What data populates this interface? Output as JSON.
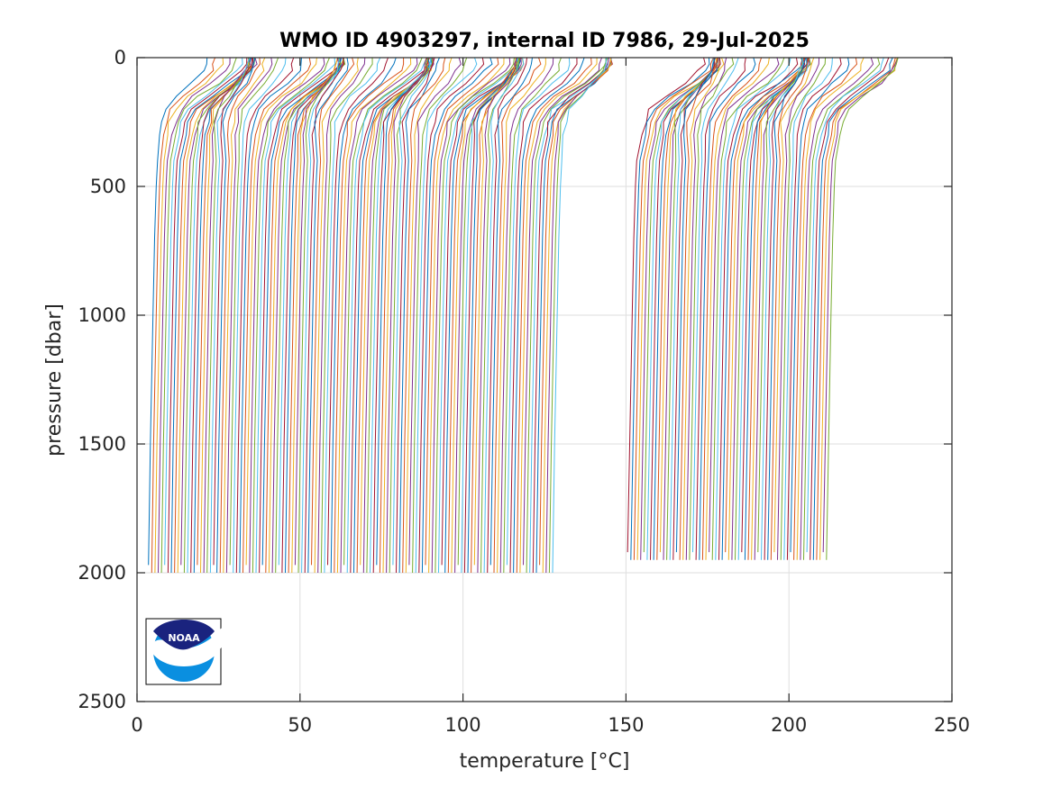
{
  "chart_data": {
    "type": "line",
    "title": "WMO ID 4903297, internal ID 7986, 29-Jul-2025",
    "xlabel": "temperature [°C]",
    "ylabel": "pressure [dbar]",
    "xlim": [
      0,
      250
    ],
    "ylim": [
      0,
      2500
    ],
    "y_reversed": true,
    "xticks": [
      "0",
      "50",
      "100",
      "150",
      "200",
      "250"
    ],
    "yticks": [
      "0",
      "500",
      "1000",
      "1500",
      "2000",
      "2500"
    ],
    "grid": true,
    "legend": "none",
    "note_offset": "each successive profile offset by about 1 °C along the temperature axis",
    "profile_shape": {
      "pressure": [
        0,
        25,
        50,
        100,
        150,
        200,
        250,
        300,
        400,
        500,
        700,
        1000,
        1500,
        2000
      ],
      "temperature": [
        19.0,
        18.9,
        18.0,
        14.5,
        10.0,
        6.5,
        5.0,
        4.4,
        3.8,
        3.4,
        2.9,
        2.4,
        1.6,
        1.0
      ]
    },
    "series_groups": [
      {
        "first_deep_offset_x": 3.5,
        "count": 125,
        "step_x": 1.0,
        "max_pressure": 2000
      },
      {
        "first_deep_offset_x": 150.5,
        "count": 62,
        "step_x": 1.0,
        "max_pressure": 1950
      }
    ],
    "series_colors": [
      "#0072bd",
      "#d95319",
      "#edb120",
      "#7e2f8e",
      "#77ac30",
      "#4dbeee",
      "#a2142f"
    ]
  },
  "logo": {
    "text": "NOAA",
    "top_color": "#1a237e",
    "bottom_color": "#0a8fe0"
  }
}
